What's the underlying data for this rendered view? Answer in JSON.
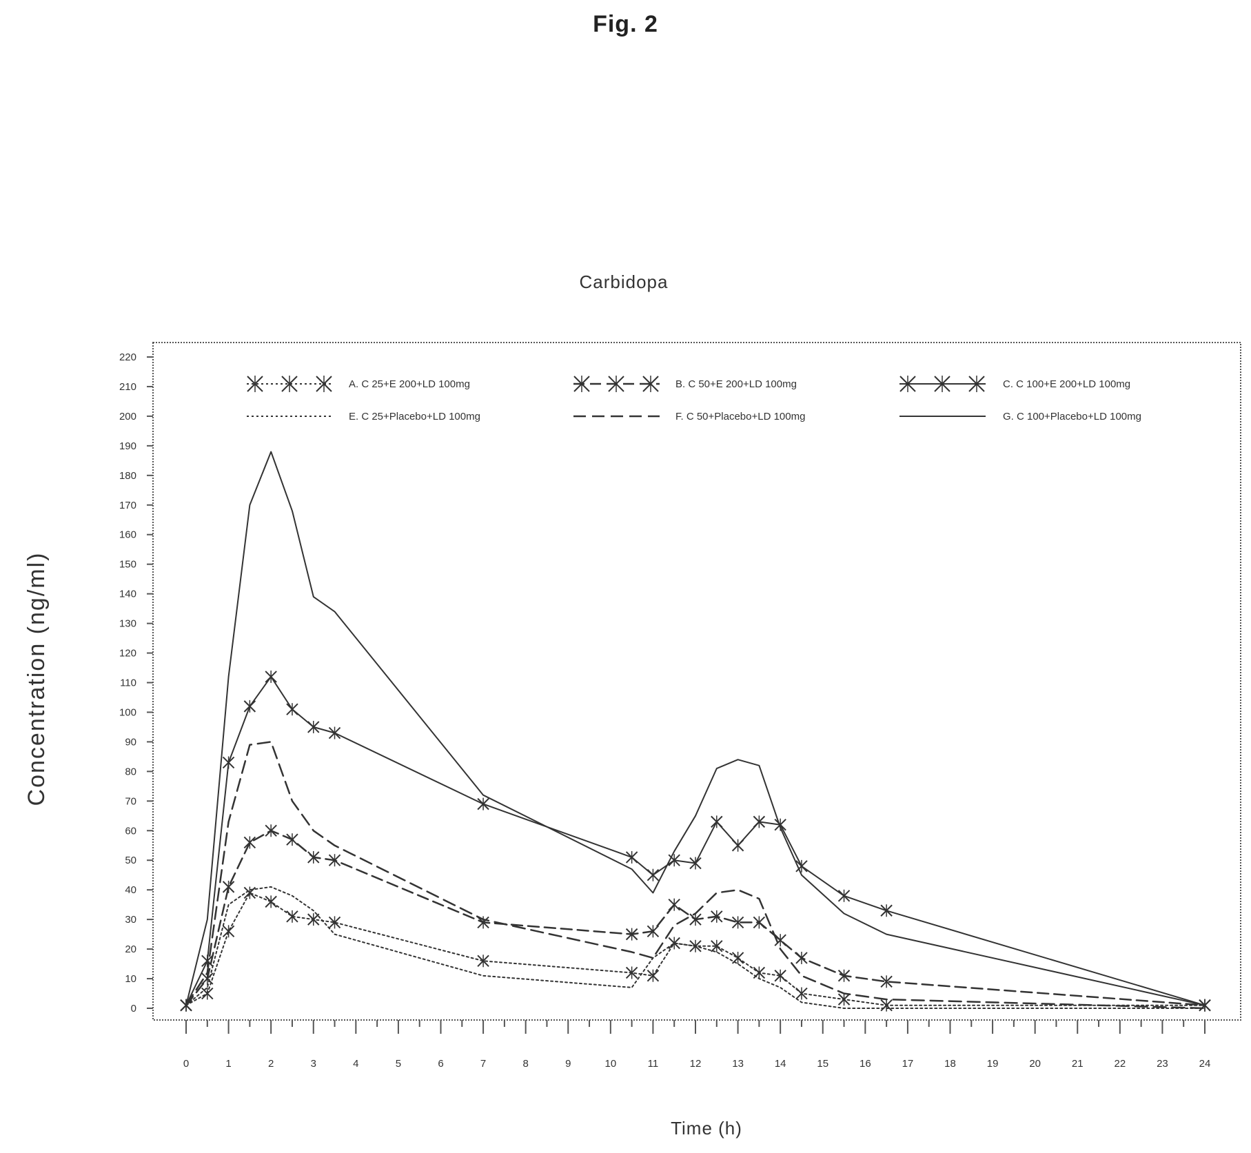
{
  "figure_label": "Fig. 2",
  "chart_data": {
    "type": "line",
    "title": "Carbidopa",
    "xlabel": "Time (h)",
    "ylabel": "Concentration (ng/ml)",
    "xlim": [
      0,
      24
    ],
    "ylim": [
      0,
      220
    ],
    "x_ticks": [
      0,
      1,
      2,
      3,
      4,
      5,
      6,
      7,
      8,
      9,
      10,
      11,
      12,
      13,
      14,
      15,
      16,
      17,
      18,
      19,
      20,
      21,
      22,
      23,
      24
    ],
    "y_ticks": [
      0,
      10,
      20,
      30,
      40,
      50,
      60,
      70,
      80,
      90,
      100,
      110,
      120,
      130,
      140,
      150,
      160,
      170,
      180,
      190,
      200,
      210,
      220
    ],
    "grid": false,
    "legend_position": "top",
    "series": [
      {
        "name": "A. C 25+E 200+LD 100mg",
        "style": "dotted-x",
        "x": [
          0,
          0.5,
          1,
          1.5,
          2,
          2.5,
          3,
          3.5,
          7,
          10.5,
          11,
          11.5,
          12,
          12.5,
          13,
          13.5,
          14,
          14.5,
          15.5,
          16.5,
          24
        ],
        "y": [
          1,
          5,
          26,
          39,
          36,
          31,
          30,
          29,
          16,
          12,
          11,
          22,
          21,
          21,
          17,
          12,
          11,
          5,
          3,
          1,
          1
        ]
      },
      {
        "name": "B. C 50+E 200+LD 100mg",
        "style": "dashed-x",
        "x": [
          0,
          0.5,
          1,
          1.5,
          2,
          2.5,
          3,
          3.5,
          7,
          10.5,
          11,
          11.5,
          12,
          12.5,
          13,
          13.5,
          14,
          14.5,
          15.5,
          16.5,
          24
        ],
        "y": [
          1,
          10,
          41,
          56,
          60,
          57,
          51,
          50,
          29,
          25,
          26,
          35,
          30,
          31,
          29,
          29,
          23,
          17,
          11,
          9,
          1
        ]
      },
      {
        "name": "C. C 100+E 200+LD 100mg",
        "style": "solid-x",
        "x": [
          0,
          0.5,
          1,
          1.5,
          2,
          2.5,
          3,
          3.5,
          7,
          10.5,
          11,
          11.5,
          12,
          12.5,
          13,
          13.5,
          14,
          14.5,
          15.5,
          16.5,
          24
        ],
        "y": [
          1,
          16,
          83,
          102,
          112,
          101,
          95,
          93,
          69,
          51,
          45,
          50,
          49,
          63,
          55,
          63,
          62,
          48,
          38,
          33,
          1
        ]
      },
      {
        "name": "E. C 25+Placebo+LD 100mg",
        "style": "dotted",
        "x": [
          0,
          0.5,
          1,
          1.5,
          2,
          2.5,
          3,
          3.5,
          7,
          10.5,
          11,
          11.5,
          12,
          12.5,
          13,
          13.5,
          14,
          14.5,
          15.5,
          16.5,
          24
        ],
        "y": [
          1,
          7,
          35,
          40,
          41,
          38,
          33,
          25,
          11,
          7,
          17,
          22,
          21,
          19,
          15,
          10,
          7,
          2,
          0,
          0,
          0
        ]
      },
      {
        "name": "F. C 50+Placebo+LD 100mg",
        "style": "dashed",
        "x": [
          0,
          0.5,
          1,
          1.5,
          2,
          2.5,
          3,
          3.5,
          7,
          10.5,
          11,
          11.5,
          12,
          12.5,
          13,
          13.5,
          14,
          14.5,
          15.5,
          16.5,
          24
        ],
        "y": [
          1,
          12,
          63,
          89,
          90,
          70,
          60,
          55,
          30,
          19,
          17,
          28,
          32,
          39,
          40,
          37,
          20,
          11,
          5,
          3,
          0
        ]
      },
      {
        "name": "G. C 100+Placebo+LD 100mg",
        "style": "solid",
        "x": [
          0,
          0.5,
          1,
          1.5,
          2,
          2.5,
          3,
          3.5,
          7,
          10.5,
          11,
          11.5,
          12,
          12.5,
          13,
          13.5,
          14,
          14.5,
          15.5,
          16.5,
          24
        ],
        "y": [
          1,
          30,
          112,
          170,
          188,
          168,
          139,
          134,
          72,
          47,
          39,
          53,
          65,
          81,
          84,
          82,
          61,
          45,
          32,
          25,
          1
        ]
      }
    ]
  }
}
